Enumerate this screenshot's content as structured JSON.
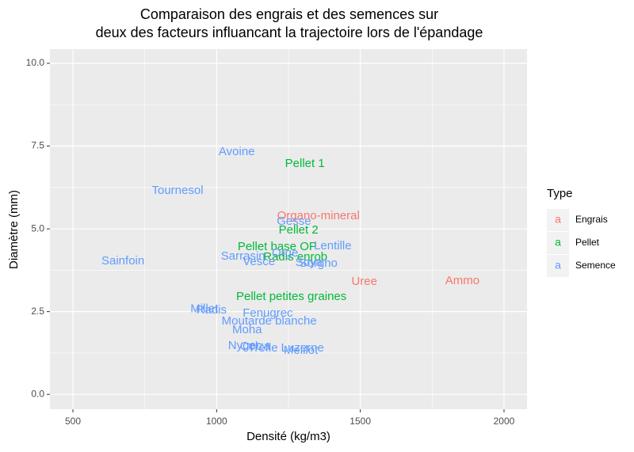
{
  "chart_data": {
    "type": "text-scatter",
    "title": [
      "Comparaison des engrais et des semences sur",
      "deux des facteurs influancant la trajectoire lors de l'épandage"
    ],
    "x_label": "Densité (kg/m3)",
    "y_label": "Diamètre (mm)",
    "legend_title": "Type",
    "legend_glyph": "a",
    "xlim": [
      420,
      2080
    ],
    "ylim": [
      -0.45,
      10.43
    ],
    "xticks": [
      500,
      1000,
      1500,
      2000
    ],
    "yticks": [
      {
        "value": 0,
        "label": "0.0"
      },
      {
        "value": 2.5,
        "label": "2.5"
      },
      {
        "value": 5,
        "label": "5.0"
      },
      {
        "value": 7.5,
        "label": "7.5"
      },
      {
        "value": 10,
        "label": "10.0"
      }
    ],
    "grid": true,
    "series": [
      {
        "name": "Engrais",
        "color": "#F8766D",
        "labels": [
          "Organo-mineral",
          "Uree",
          "Ammo"
        ],
        "x": [
          1354,
          1514,
          1855
        ],
        "values": [
          5.38,
          3.4,
          3.42
        ]
      },
      {
        "name": "Pellet",
        "color": "#00BA38",
        "labels": [
          "Pellet 1",
          "Pellet 2",
          "Pellet base OP",
          "Radis enrob",
          "Pellet petites graines"
        ],
        "x": [
          1307,
          1285,
          1211,
          1274,
          1260
        ],
        "values": [
          6.96,
          4.95,
          4.45,
          4.14,
          2.94
        ]
      },
      {
        "name": "Semence",
        "color": "#619CFF",
        "labels": [
          "Avoine",
          "Tournesol",
          "Gesse",
          "Lentille",
          "Sarrasin",
          "Orge",
          "Vesce",
          "Sainfoin",
          "Soya",
          "Sorgho",
          "Millet",
          "Radis",
          "Fenugrec",
          "Moutarde blanche",
          "Moha",
          "Nyger",
          "Colza",
          "Trefle",
          "Luzerne",
          "Melilot"
        ],
        "x": [
          1070,
          864,
          1269,
          1404,
          1092,
          1238,
          1147,
          674,
          1321,
          1354,
          957,
          982,
          1178,
          1183,
          1106,
          1095,
          1134,
          1161,
          1299,
          1293
        ],
        "values": [
          7.32,
          6.15,
          5.22,
          4.47,
          4.16,
          4.26,
          4.0,
          4.02,
          3.97,
          3.95,
          2.58,
          2.54,
          2.44,
          2.2,
          1.94,
          1.46,
          1.44,
          1.39,
          1.39,
          1.32
        ]
      }
    ]
  }
}
